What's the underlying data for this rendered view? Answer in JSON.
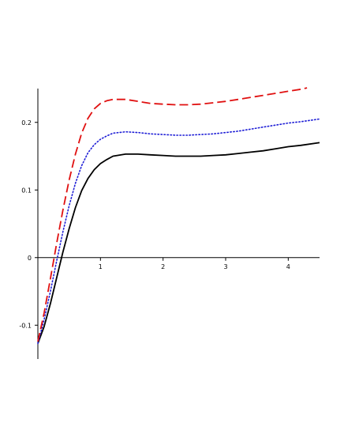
{
  "chart_data": {
    "type": "line",
    "title": "",
    "xlabel": "",
    "ylabel": "",
    "xlim": [
      0,
      4.5
    ],
    "ylim": [
      -0.15,
      0.25
    ],
    "grid": false,
    "legend": "none",
    "x_ticks": [
      {
        "value": 1,
        "label": "1"
      },
      {
        "value": 2,
        "label": "2"
      },
      {
        "value": 3,
        "label": "3"
      },
      {
        "value": 4,
        "label": "4"
      }
    ],
    "y_ticks": [
      {
        "value": -0.1,
        "label": "-0.1"
      },
      {
        "value": 0,
        "label": "0"
      },
      {
        "value": 0.1,
        "label": "0.1"
      },
      {
        "value": 0.2,
        "label": "0.2"
      }
    ],
    "series": [
      {
        "style": "solid",
        "color": "#000000",
        "x": [
          0,
          0.1,
          0.2,
          0.3,
          0.4,
          0.5,
          0.6,
          0.7,
          0.8,
          0.9,
          1.0,
          1.1,
          1.2,
          1.4,
          1.6,
          1.8,
          2.0,
          2.2,
          2.4,
          2.6,
          2.8,
          3.0,
          3.2,
          3.4,
          3.6,
          3.8,
          4.0,
          4.2,
          4.5
        ],
        "y": [
          -0.127,
          -0.102,
          -0.068,
          -0.03,
          0.008,
          0.043,
          0.074,
          0.099,
          0.117,
          0.13,
          0.139,
          0.145,
          0.15,
          0.153,
          0.153,
          0.152,
          0.151,
          0.15,
          0.15,
          0.15,
          0.151,
          0.152,
          0.154,
          0.156,
          0.158,
          0.161,
          0.164,
          0.166,
          0.17
        ]
      },
      {
        "style": "dotted",
        "color": "#1f1fd6",
        "x": [
          0,
          0.1,
          0.2,
          0.3,
          0.4,
          0.5,
          0.6,
          0.7,
          0.8,
          0.9,
          1.0,
          1.1,
          1.2,
          1.4,
          1.6,
          1.8,
          2.0,
          2.2,
          2.4,
          2.6,
          2.8,
          3.0,
          3.2,
          3.4,
          3.6,
          3.8,
          4.0,
          4.2,
          4.5
        ],
        "y": [
          -0.127,
          -0.092,
          -0.05,
          -0.005,
          0.038,
          0.077,
          0.11,
          0.136,
          0.155,
          0.167,
          0.175,
          0.18,
          0.184,
          0.186,
          0.185,
          0.183,
          0.182,
          0.181,
          0.181,
          0.182,
          0.183,
          0.185,
          0.187,
          0.19,
          0.193,
          0.196,
          0.199,
          0.201,
          0.205
        ]
      },
      {
        "style": "dashed",
        "color": "#e01010",
        "x": [
          0,
          0.1,
          0.2,
          0.3,
          0.4,
          0.5,
          0.6,
          0.7,
          0.8,
          0.9,
          1.0,
          1.1,
          1.2,
          1.4,
          1.6,
          1.8,
          2.0,
          2.2,
          2.4,
          2.6,
          2.8,
          3.0,
          3.2,
          3.4,
          3.6,
          3.8,
          4.0,
          4.2,
          4.3
        ],
        "y": [
          -0.124,
          -0.082,
          -0.031,
          0.021,
          0.07,
          0.115,
          0.153,
          0.184,
          0.206,
          0.22,
          0.228,
          0.232,
          0.234,
          0.234,
          0.231,
          0.228,
          0.227,
          0.226,
          0.226,
          0.227,
          0.229,
          0.231,
          0.234,
          0.237,
          0.24,
          0.243,
          0.246,
          0.249,
          0.251
        ]
      }
    ]
  }
}
